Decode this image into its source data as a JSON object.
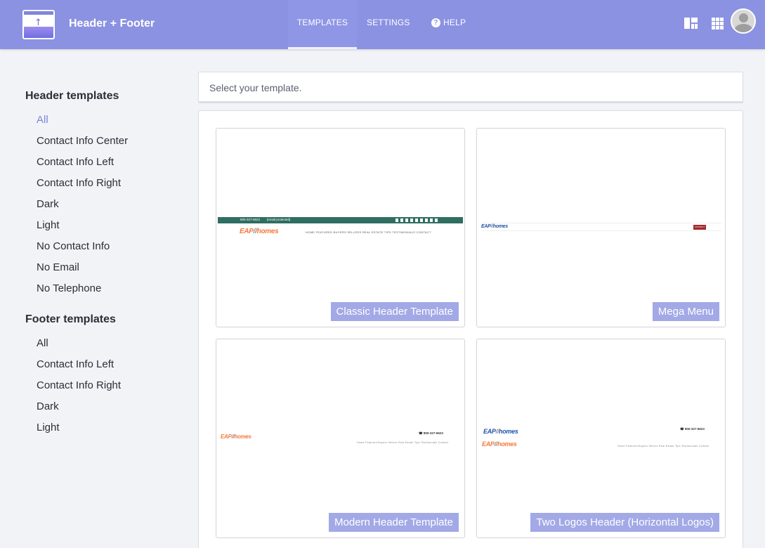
{
  "app": {
    "title": "Header + Footer"
  },
  "nav": {
    "templates": "TEMPLATES",
    "settings": "SETTINGS",
    "help": "HELP",
    "help_icon": "?"
  },
  "icons": {
    "layout": "layout-icon",
    "apps": "apps-grid-icon",
    "avatar": "user-avatar"
  },
  "sidebar": {
    "header_heading": "Header templates",
    "header_filters": [
      "All",
      "Contact Info Center",
      "Contact Info Left",
      "Contact Info Right",
      "Dark",
      "Light",
      "No Contact Info",
      "No Email",
      "No Telephone"
    ],
    "header_active": "All",
    "footer_heading": "Footer templates",
    "footer_filters": [
      "All",
      "Contact Info Left",
      "Contact Info Right",
      "Dark",
      "Light"
    ]
  },
  "search": {
    "placeholder": "Select your template."
  },
  "templates": [
    {
      "label": "Classic Header Template"
    },
    {
      "label": "Mega Menu"
    },
    {
      "label": "Modern Header Template"
    },
    {
      "label": "Two Logos Header (Horizontal Logos)"
    }
  ],
  "preview": {
    "logo_eap": "EAP",
    "logo_slash": "//",
    "logo_homes": "homes",
    "phone": "800-327-6623",
    "email": "[email protected]",
    "classic_nav": "HOME   FEATURED   BUYERS   SELLERS   REAL ESTATE TIPS   TESTIMONIALS   CONTACT",
    "modern_nav": "Home    Featured    Buyers    Sellers    Real Estate Tips    Testimonials    Contact",
    "mega_button": "CONTACT",
    "colors": {
      "teal_bar": "#2f6e62",
      "mega_button": "#a3282d",
      "accent": "#8b92e2",
      "label_bg": "#a2a9e6"
    }
  }
}
